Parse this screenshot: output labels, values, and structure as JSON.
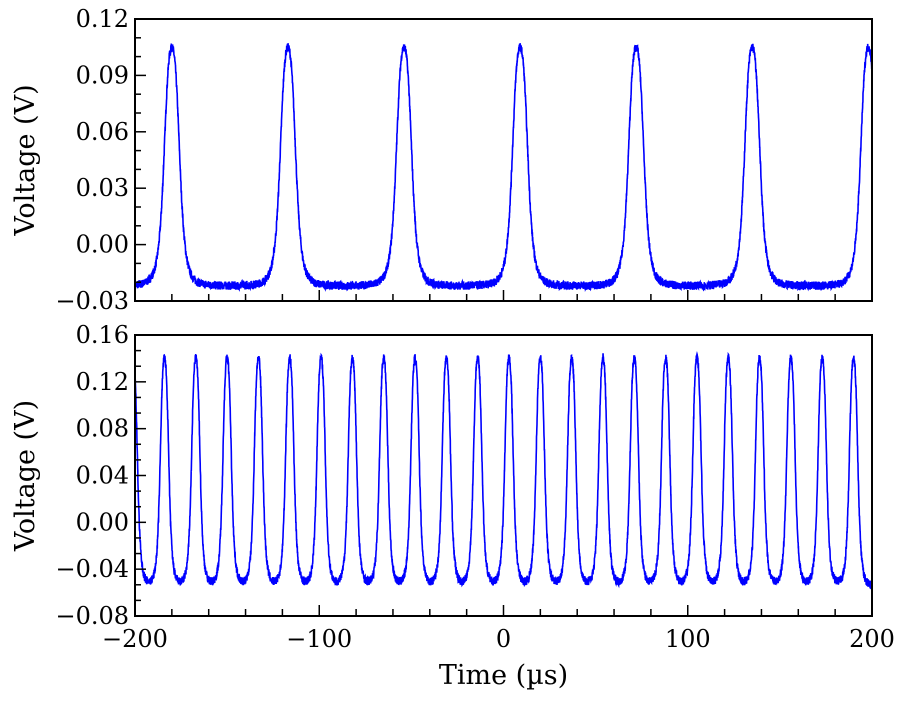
{
  "chart_data": [
    {
      "type": "line",
      "title": "",
      "xlabel": "",
      "ylabel": "Voltage (V)",
      "xlim": [
        -200,
        200
      ],
      "ylim": [
        -0.03,
        0.12
      ],
      "yticks": [
        "0.12",
        "0.09",
        "0.06",
        "0.03",
        "0.00",
        "−0.03"
      ],
      "ytick_values": [
        0.12,
        0.09,
        0.06,
        0.03,
        0.0,
        -0.03
      ],
      "xticks_labeled": false,
      "grid": false,
      "line_color": "#0000ff",
      "series": [
        {
          "kind": "periodic pulse train",
          "peak_times_us": [
            -180,
            -117,
            -54,
            9,
            72,
            135,
            198
          ],
          "peak_value": 0.105,
          "baseline": -0.022,
          "fwhm_us": 9
        }
      ]
    },
    {
      "type": "line",
      "title": "",
      "xlabel": "Time (µs)",
      "ylabel": "Voltage (V)",
      "xlim": [
        -200,
        200
      ],
      "ylim": [
        -0.08,
        0.16
      ],
      "xticks": [
        "−200",
        "−100",
        "0",
        "100",
        "200"
      ],
      "xtick_values": [
        -200,
        -100,
        0,
        100,
        200
      ],
      "yticks": [
        "0.16",
        "0.12",
        "0.08",
        "0.04",
        "0.00",
        "−0.04",
        "−0.08"
      ],
      "ytick_values": [
        0.16,
        0.12,
        0.08,
        0.04,
        0.0,
        -0.04,
        -0.08
      ],
      "grid": false,
      "line_color": "#0000ff",
      "series": [
        {
          "kind": "periodic pulse train",
          "peak_times_us": [
            -201,
            -184,
            -167,
            -150,
            -133,
            -116,
            -99,
            -82,
            -65,
            -48,
            -31,
            -14,
            3,
            20,
            37,
            54,
            71,
            88,
            105,
            122,
            139,
            156,
            173,
            190
          ],
          "peak_value": 0.14,
          "baseline": -0.055,
          "fwhm_us": 5
        }
      ]
    }
  ]
}
